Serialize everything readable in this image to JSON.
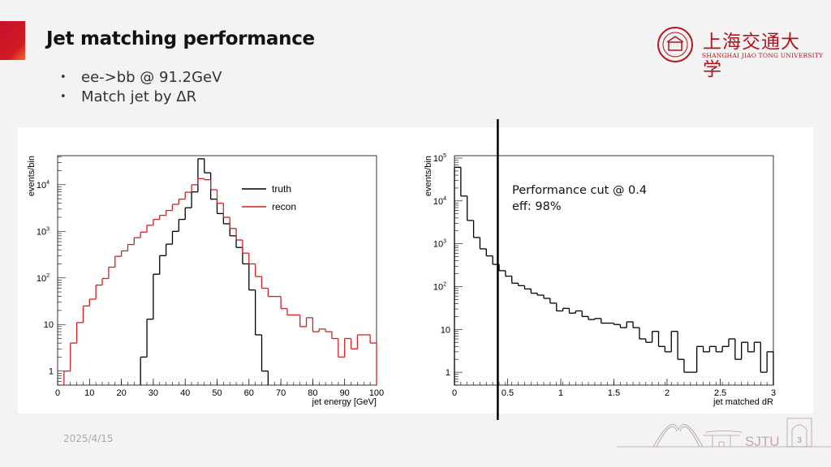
{
  "slide": {
    "title": "Jet matching performance",
    "bullets": [
      "ee->bb @ 91.2GeV",
      "Match jet by ΔR"
    ],
    "date": "2025/4/15",
    "page_number": "3",
    "logo": {
      "chinese_name": "上海交通大学",
      "english_name": "SHANGHAI JIAO TONG UNIVERSITY",
      "footer_mark": "SJTU"
    },
    "accent_color": "#c8102e"
  },
  "chart_data": [
    {
      "type": "histogram",
      "xlabel": "jet energy [GeV]",
      "ylabel": "events/bin",
      "xlim": [
        0,
        100
      ],
      "ylim": [
        0.5,
        42000
      ],
      "log_y": true,
      "bin_width": 2,
      "x_ticks": [
        0,
        10,
        20,
        30,
        40,
        50,
        60,
        70,
        80,
        90,
        100
      ],
      "y_ticks": [
        "1",
        "10",
        "10^2",
        "10^3",
        "10^4"
      ],
      "legend": "top-right",
      "series": [
        {
          "name": "truth",
          "color": "#000000",
          "values": [
            0,
            0,
            0,
            0,
            0,
            0,
            0,
            0,
            0,
            0,
            0,
            0,
            0,
            2,
            13,
            120,
            300,
            530,
            1000,
            1800,
            3200,
            7000,
            36000,
            18000,
            4900,
            2400,
            1450,
            800,
            450,
            200,
            55,
            6,
            1,
            0,
            0,
            0,
            0,
            0,
            0,
            0,
            0,
            0,
            0,
            0,
            0,
            0,
            0,
            0,
            0,
            0
          ]
        },
        {
          "name": "recon",
          "color": "#d42020",
          "values": [
            0,
            1,
            4,
            11,
            25,
            35,
            70,
            97,
            170,
            290,
            380,
            520,
            730,
            960,
            1350,
            1800,
            2200,
            2800,
            3800,
            4900,
            6900,
            10000,
            13500,
            12800,
            7800,
            4000,
            2000,
            1150,
            650,
            340,
            200,
            107,
            60,
            40,
            40,
            22,
            16,
            16,
            9,
            14,
            7,
            8,
            7,
            5,
            2,
            5,
            3,
            6,
            6,
            4
          ]
        }
      ]
    },
    {
      "type": "histogram",
      "xlabel": "jet matched dR",
      "ylabel": "events/bin",
      "xlim": [
        0,
        3
      ],
      "ylim": [
        0.5,
        114000
      ],
      "log_y": true,
      "bin_width": 0.06,
      "x_ticks": [
        0,
        0.5,
        1,
        1.5,
        2,
        2.5,
        3
      ],
      "y_ticks": [
        "1",
        "10",
        "10^2",
        "10^3",
        "10^4",
        "10^5"
      ],
      "cut_line": 0.4,
      "annotations": [
        "Performance cut @ 0.4",
        "eff: 98%"
      ],
      "series": [
        {
          "color": "#000000",
          "values": [
            61000,
            13000,
            3500,
            1400,
            760,
            520,
            330,
            235,
            175,
            120,
            105,
            88,
            70,
            63,
            53,
            41,
            27,
            31,
            24,
            27,
            20,
            17,
            18,
            14,
            14,
            13,
            11,
            15,
            11,
            6,
            5,
            9,
            4,
            3,
            9,
            2,
            1,
            1,
            4,
            3,
            4,
            3,
            4,
            6,
            2,
            5,
            3,
            5,
            1,
            3
          ]
        }
      ]
    }
  ]
}
